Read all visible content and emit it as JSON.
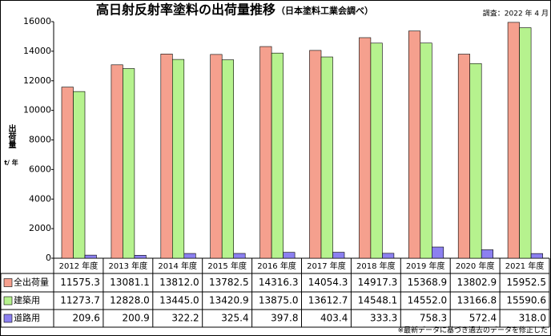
{
  "chart_data": {
    "type": "bar",
    "title": "高日射反射率塗料の出荷量推移",
    "subtitle": "（日本塗料工業会調べ）",
    "note": "調査：2022 年 4 月",
    "y_label": "出荷量",
    "y_unit": "t/ 年",
    "footnote": "※最新データに基づき過去のデータを修正した",
    "categories": [
      "2012 年度",
      "2013 年度",
      "2014 年度",
      "2015 年度",
      "2016 年度",
      "2017 年度",
      "2018 年度",
      "2019 年度",
      "2020 年度",
      "2021 年度"
    ],
    "series": [
      {
        "name": "全出荷量",
        "color": "#f5a08e",
        "values": [
          11575.3,
          13081.1,
          13812.0,
          13782.5,
          14316.3,
          14054.3,
          14917.3,
          15368.9,
          13802.9,
          15952.5
        ],
        "value_labels": [
          "11575.3",
          "13081.1",
          "13812.0",
          "13782.5",
          "14316.3",
          "14054.3",
          "14917.3",
          "15368.9",
          "13802.9",
          "15952.5"
        ]
      },
      {
        "name": "建築用",
        "color": "#b6f28e",
        "values": [
          11273.7,
          12828.0,
          13445.0,
          13420.9,
          13875.0,
          13612.7,
          14548.1,
          14552.0,
          13166.8,
          15590.6
        ],
        "value_labels": [
          "11273.7",
          "12828.0",
          "13445.0",
          "13420.9",
          "13875.0",
          "13612.7",
          "14548.1",
          "14552.0",
          "13166.8",
          "15590.6"
        ]
      },
      {
        "name": "道路用",
        "color": "#8c80f0",
        "values": [
          209.6,
          200.9,
          322.2,
          325.4,
          397.8,
          403.4,
          333.3,
          758.3,
          572.4,
          318.0
        ],
        "value_labels": [
          "209.6",
          "200.9",
          "322.2",
          "325.4",
          "397.8",
          "403.4",
          "333.3",
          "758.3",
          "572.4",
          "318.0"
        ]
      }
    ],
    "ylim": [
      0,
      16000
    ],
    "yticks": [
      0,
      2000,
      4000,
      6000,
      8000,
      10000,
      12000,
      14000,
      16000
    ]
  }
}
